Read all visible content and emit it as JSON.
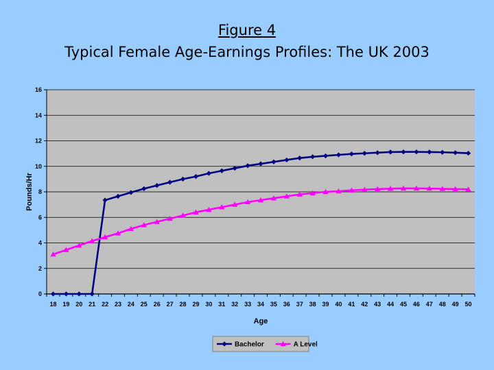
{
  "slide": {
    "figure_label": "Figure 4",
    "title": "Typical Female Age-Earnings Profiles: The UK 2003"
  },
  "colors": {
    "background": "#99ccff",
    "plot_area": "#c0c0c0",
    "bachelor": "#000080",
    "a_level": "#ff00ff"
  },
  "chart_data": {
    "type": "line",
    "xlabel": "Age",
    "ylabel": "Pounds/Hr",
    "x": [
      18,
      19,
      20,
      21,
      22,
      23,
      24,
      25,
      26,
      27,
      28,
      29,
      30,
      31,
      32,
      33,
      34,
      35,
      36,
      37,
      38,
      39,
      40,
      41,
      42,
      43,
      44,
      45,
      46,
      47,
      48,
      49,
      50
    ],
    "ylim": [
      0,
      16
    ],
    "yticks": [
      0,
      2,
      4,
      6,
      8,
      10,
      12,
      14,
      16
    ],
    "grid": true,
    "legend_position": "bottom",
    "series": [
      {
        "name": "Bachelor",
        "marker": "diamond",
        "color": "#000080",
        "values": [
          0,
          0,
          0,
          0,
          7.35,
          7.65,
          7.95,
          8.25,
          8.5,
          8.75,
          9.0,
          9.2,
          9.45,
          9.65,
          9.85,
          10.05,
          10.2,
          10.35,
          10.5,
          10.65,
          10.75,
          10.82,
          10.9,
          10.97,
          11.02,
          11.07,
          11.12,
          11.13,
          11.13,
          11.12,
          11.1,
          11.07,
          11.03
        ]
      },
      {
        "name": "A Level",
        "marker": "triangle",
        "color": "#ff00ff",
        "values": [
          3.1,
          3.45,
          3.8,
          4.15,
          4.45,
          4.75,
          5.1,
          5.4,
          5.65,
          5.9,
          6.15,
          6.4,
          6.6,
          6.8,
          7.0,
          7.2,
          7.35,
          7.5,
          7.65,
          7.8,
          7.9,
          8.0,
          8.05,
          8.12,
          8.17,
          8.22,
          8.25,
          8.27,
          8.27,
          8.26,
          8.24,
          8.22,
          8.2
        ]
      }
    ]
  }
}
